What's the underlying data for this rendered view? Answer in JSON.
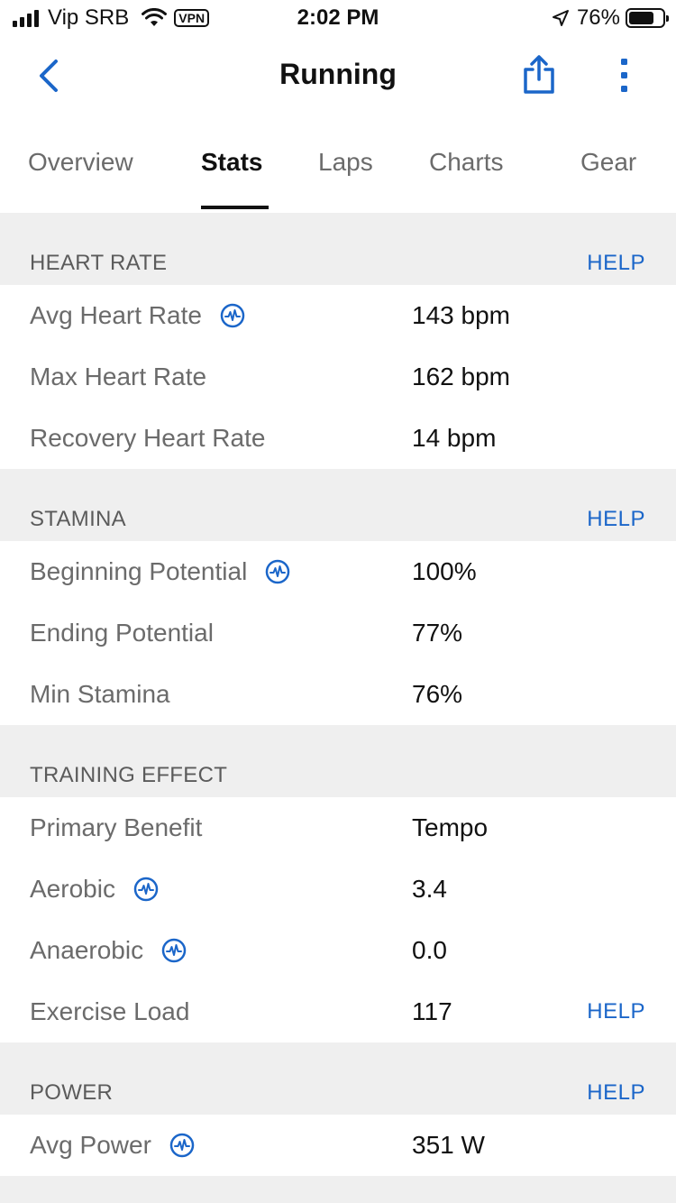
{
  "status_bar": {
    "carrier": "Vip SRB",
    "vpn": "VPN",
    "time": "2:02 PM",
    "battery_percent": "76%",
    "battery_level": 0.76
  },
  "nav": {
    "title": "Running",
    "back_icon": "chevron-left-icon",
    "share_icon": "share-icon",
    "more_icon": "more-vertical-icon"
  },
  "tabs": [
    {
      "label": "Overview",
      "active": false
    },
    {
      "label": "Stats",
      "active": true
    },
    {
      "label": "Laps",
      "active": false
    },
    {
      "label": "Charts",
      "active": false
    },
    {
      "label": "Gear",
      "active": false
    }
  ],
  "accent_color": "#1b66c9",
  "sections": {
    "heart_rate": {
      "title": "HEART RATE",
      "help": "HELP",
      "rows": [
        {
          "label": "Avg Heart Rate",
          "value": "143 bpm"
        },
        {
          "label": "Max Heart Rate",
          "value": "162 bpm"
        },
        {
          "label": "Recovery Heart Rate",
          "value": "14 bpm"
        }
      ]
    },
    "stamina": {
      "title": "STAMINA",
      "help": "HELP",
      "rows": [
        {
          "label": "Beginning Potential",
          "value": "100%"
        },
        {
          "label": "Ending Potential",
          "value": "77%"
        },
        {
          "label": "Min Stamina",
          "value": "76%"
        }
      ]
    },
    "training_effect": {
      "title": "TRAINING EFFECT",
      "rows": [
        {
          "label": "Primary Benefit",
          "value": "Tempo"
        },
        {
          "label": "Aerobic",
          "value": "3.4"
        },
        {
          "label": "Anaerobic",
          "value": "0.0"
        },
        {
          "label": "Exercise Load",
          "value": "117",
          "help": "HELP"
        }
      ]
    },
    "power": {
      "title": "POWER",
      "help": "HELP",
      "rows": [
        {
          "label": "Avg Power",
          "value": "351 W"
        }
      ]
    }
  }
}
